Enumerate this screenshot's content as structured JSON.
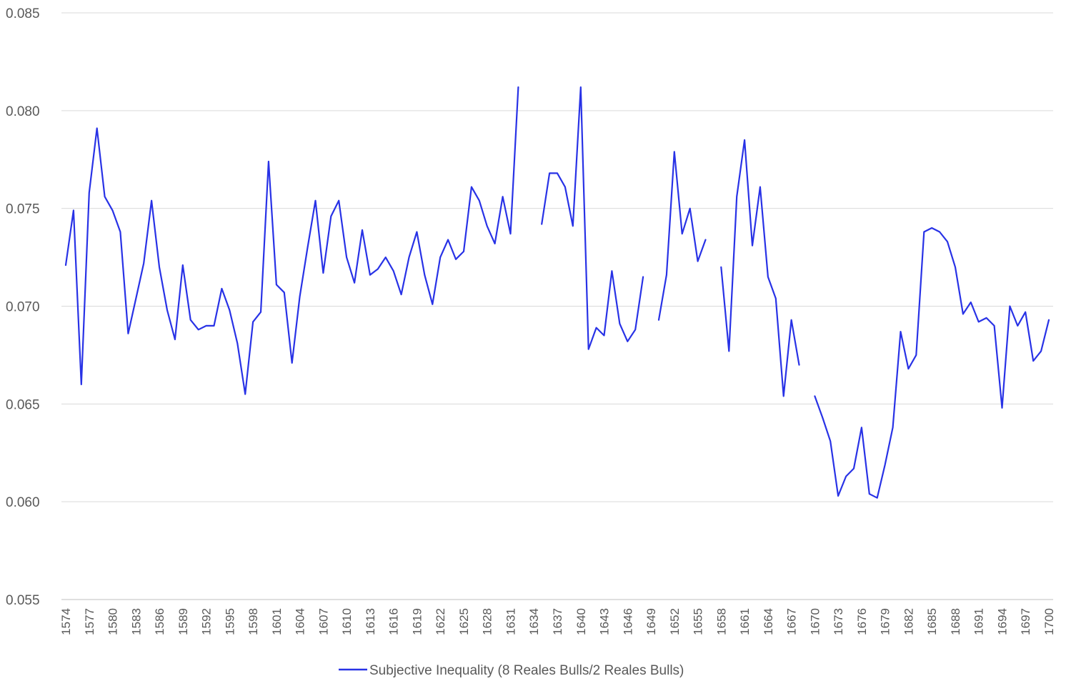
{
  "chart_data": {
    "type": "line",
    "title": "",
    "xlabel": "",
    "ylabel": "",
    "x_start": 1574,
    "x_end": 1700,
    "x_tick_labels": [
      "1574",
      "1577",
      "1580",
      "1583",
      "1586",
      "1589",
      "1592",
      "1595",
      "1598",
      "1601",
      "1604",
      "1607",
      "1610",
      "1613",
      "1616",
      "1619",
      "1622",
      "1625",
      "1628",
      "1631",
      "1634",
      "1637",
      "1640",
      "1643",
      "1646",
      "1649",
      "1652",
      "1655",
      "1658",
      "1661",
      "1664",
      "1667",
      "1670",
      "1673",
      "1676",
      "1679",
      "1682",
      "1685",
      "1688",
      "1691",
      "1694",
      "1697",
      "1700"
    ],
    "y_tick_labels": [
      "0.055",
      "0.060",
      "0.065",
      "0.070",
      "0.075",
      "0.080",
      "0.085"
    ],
    "ylim": [
      0.055,
      0.085
    ],
    "y_ticks": [
      0.055,
      0.06,
      0.065,
      0.07,
      0.075,
      0.08,
      0.085
    ],
    "grid": true,
    "legend_position": "bottom",
    "series": [
      {
        "name": "Subjective Inequality (8 Reales Bulls/2 Reales Bulls)",
        "color": "#2832e6",
        "values": [
          0.0721,
          0.0749,
          0.066,
          0.0758,
          0.0791,
          0.0756,
          0.0749,
          0.0738,
          0.0686,
          0.0704,
          0.0722,
          0.0754,
          0.072,
          0.0698,
          0.0683,
          0.0721,
          0.0693,
          0.0688,
          0.069,
          0.069,
          0.0709,
          0.0698,
          0.0681,
          0.0655,
          0.0692,
          0.0697,
          0.0774,
          0.0711,
          0.0707,
          0.0671,
          0.0705,
          0.073,
          0.0754,
          0.0717,
          0.0746,
          0.0754,
          0.0725,
          0.0712,
          0.0739,
          0.0716,
          0.0719,
          0.0725,
          0.0718,
          0.0706,
          0.0725,
          0.0738,
          0.0716,
          0.0701,
          0.0725,
          0.0734,
          0.0724,
          0.0728,
          0.0761,
          0.0754,
          0.0741,
          0.0732,
          0.0756,
          0.0737,
          0.0812,
          null,
          null,
          0.0742,
          0.0768,
          0.0768,
          0.0761,
          0.0741,
          0.0812,
          0.0678,
          0.0689,
          0.0685,
          0.0718,
          0.0691,
          0.0682,
          0.0688,
          0.0715,
          null,
          0.0693,
          0.0716,
          0.0779,
          0.0737,
          0.075,
          0.0723,
          0.0734,
          null,
          0.072,
          0.0677,
          0.0756,
          0.0785,
          0.0731,
          0.0761,
          0.0715,
          0.0704,
          0.0654,
          0.0693,
          0.067,
          null,
          0.0654,
          0.0643,
          0.0631,
          0.0603,
          0.0613,
          0.0617,
          0.0638,
          0.0604,
          0.0602,
          0.0619,
          0.0638,
          0.0687,
          0.0668,
          0.0675,
          0.0738,
          0.074,
          0.0738,
          0.0733,
          0.072,
          0.0696,
          0.0702,
          0.0692,
          0.0694,
          0.069,
          0.0648,
          0.07,
          0.069,
          0.0697,
          0.0672,
          0.0677,
          0.0693
        ]
      }
    ]
  }
}
